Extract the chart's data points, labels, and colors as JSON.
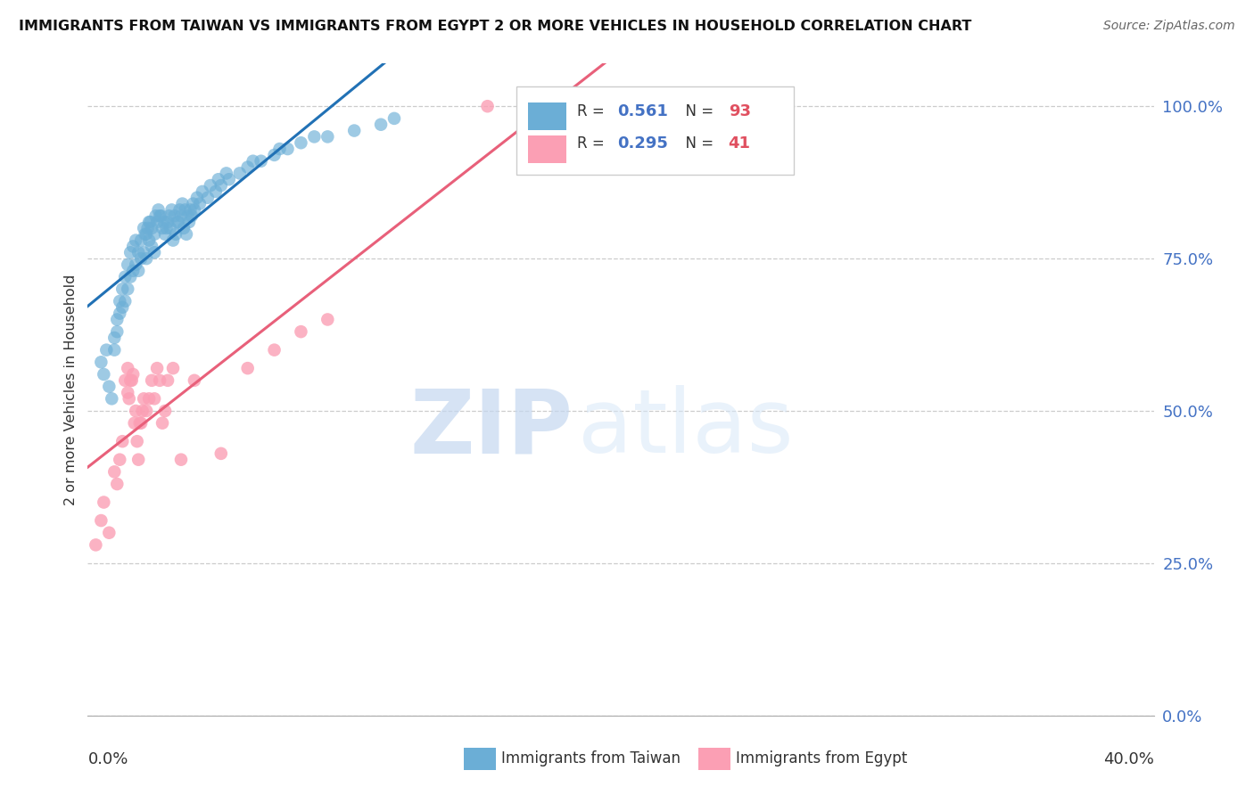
{
  "title": "IMMIGRANTS FROM TAIWAN VS IMMIGRANTS FROM EGYPT 2 OR MORE VEHICLES IN HOUSEHOLD CORRELATION CHART",
  "source": "Source: ZipAtlas.com",
  "ylabel": "2 or more Vehicles in Household",
  "ytick_vals": [
    0.0,
    25.0,
    50.0,
    75.0,
    100.0
  ],
  "xlim": [
    0.0,
    40.0
  ],
  "ylim": [
    0.0,
    107.0
  ],
  "taiwan_color": "#6baed6",
  "egypt_color": "#fb9fb4",
  "taiwan_line_color": "#2171b5",
  "egypt_line_color": "#e8607a",
  "taiwan_R": "0.561",
  "taiwan_N": "93",
  "egypt_R": "0.295",
  "egypt_N": "41",
  "taiwan_label": "Immigrants from Taiwan",
  "egypt_label": "Immigrants from Egypt",
  "taiwan_x": [
    0.5,
    0.6,
    0.7,
    0.8,
    0.9,
    1.0,
    1.0,
    1.1,
    1.1,
    1.2,
    1.2,
    1.3,
    1.3,
    1.4,
    1.4,
    1.5,
    1.5,
    1.6,
    1.6,
    1.7,
    1.7,
    1.8,
    1.8,
    1.9,
    1.9,
    2.0,
    2.0,
    2.1,
    2.1,
    2.2,
    2.2,
    2.3,
    2.3,
    2.4,
    2.4,
    2.5,
    2.5,
    2.6,
    2.7,
    2.8,
    2.9,
    3.0,
    3.1,
    3.2,
    3.3,
    3.4,
    3.5,
    3.6,
    3.7,
    3.8,
    3.9,
    4.0,
    4.2,
    4.5,
    4.8,
    5.0,
    5.3,
    5.7,
    6.0,
    6.5,
    7.0,
    7.5,
    8.0,
    9.0,
    10.0,
    11.5,
    2.15,
    2.25,
    2.35,
    2.55,
    2.65,
    2.75,
    2.85,
    2.95,
    3.05,
    3.15,
    3.25,
    3.35,
    3.45,
    3.55,
    3.65,
    3.75,
    3.85,
    3.95,
    4.1,
    4.3,
    4.6,
    4.9,
    5.2,
    6.2,
    7.2,
    8.5,
    11.0
  ],
  "taiwan_y": [
    58,
    56,
    60,
    54,
    52,
    62,
    60,
    65,
    63,
    68,
    66,
    70,
    67,
    72,
    68,
    74,
    70,
    76,
    72,
    77,
    73,
    78,
    74,
    76,
    73,
    78,
    75,
    80,
    76,
    79,
    75,
    81,
    78,
    80,
    77,
    79,
    76,
    81,
    82,
    80,
    79,
    81,
    80,
    78,
    79,
    81,
    82,
    80,
    79,
    81,
    82,
    83,
    84,
    85,
    86,
    87,
    88,
    89,
    90,
    91,
    92,
    93,
    94,
    95,
    96,
    98,
    79,
    80,
    81,
    82,
    83,
    82,
    81,
    80,
    82,
    83,
    82,
    81,
    83,
    84,
    83,
    82,
    83,
    84,
    85,
    86,
    87,
    88,
    89,
    91,
    93,
    95,
    97
  ],
  "egypt_x": [
    0.3,
    0.5,
    0.6,
    0.8,
    1.0,
    1.1,
    1.2,
    1.3,
    1.4,
    1.5,
    1.5,
    1.6,
    1.7,
    1.8,
    1.9,
    2.0,
    2.1,
    2.2,
    2.3,
    2.4,
    2.5,
    2.6,
    2.7,
    2.8,
    2.9,
    3.0,
    3.2,
    3.5,
    4.0,
    5.0,
    6.0,
    7.0,
    8.0,
    9.0,
    15.0,
    1.55,
    1.65,
    1.75,
    1.85,
    1.95,
    2.05
  ],
  "egypt_y": [
    28,
    32,
    35,
    30,
    40,
    38,
    42,
    45,
    55,
    57,
    53,
    55,
    56,
    50,
    42,
    48,
    52,
    50,
    52,
    55,
    52,
    57,
    55,
    48,
    50,
    55,
    57,
    42,
    55,
    43,
    57,
    60,
    63,
    65,
    100,
    52,
    55,
    48,
    45,
    48,
    50
  ],
  "watermark_zip": "ZIP",
  "watermark_atlas": "atlas",
  "bg_color": "white"
}
